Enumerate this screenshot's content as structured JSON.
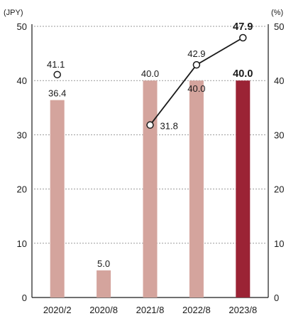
{
  "chart_data": {
    "type": "bar+line",
    "categories": [
      "2020/2",
      "2020/8",
      "2021/8",
      "2022/8",
      "2023/8"
    ],
    "left_axis": {
      "unit": "(JPY)",
      "ticks": [
        0,
        10,
        20,
        30,
        40,
        50
      ],
      "ylim": [
        0,
        50
      ]
    },
    "right_axis": {
      "unit": "(%)",
      "ticks": [
        0,
        10,
        20,
        30,
        40,
        50
      ],
      "ylim": [
        0,
        50
      ]
    },
    "bars": {
      "axis": "left",
      "values": [
        36.4,
        5.0,
        40.0,
        40.0,
        40.0
      ],
      "labels": [
        "36.4",
        "5.0",
        "40.0",
        "40.0",
        "40.0"
      ],
      "colors": [
        "#d4a49d",
        "#d4a49d",
        "#d4a49d",
        "#d4a49d",
        "#9b2335"
      ],
      "highlight_index": 4
    },
    "line": {
      "axis": "right",
      "isolated_point": {
        "category_index": 0,
        "value": 41.1,
        "label": "41.1"
      },
      "points": [
        {
          "category_index": 2,
          "value": 31.8,
          "label": "31.8"
        },
        {
          "category_index": 3,
          "value": 42.9,
          "label": "42.9"
        },
        {
          "category_index": 4,
          "value": 47.9,
          "label": "47.9"
        }
      ],
      "color": "#1a1a1a"
    },
    "grid": "dotted horizontal"
  }
}
